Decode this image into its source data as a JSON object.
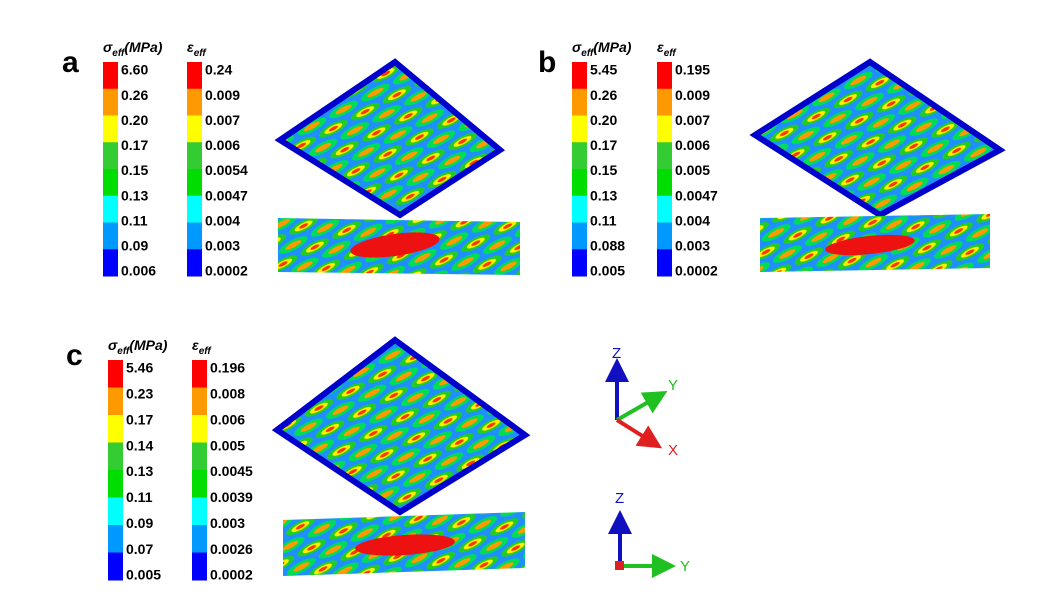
{
  "colorbar_colors": [
    "#ff0000",
    "#ff9900",
    "#ffff00",
    "#33cc33",
    "#00dd00",
    "#00ffff",
    "#0099ff",
    "#0000ff"
  ],
  "panels": [
    {
      "label": "a",
      "stress": {
        "symbol": "σ",
        "sub": "eff",
        "unit": "(MPa)",
        "ticks": [
          "6.60",
          "0.26",
          "0.20",
          "0.17",
          "0.15",
          "0.13",
          "0.11",
          "0.09",
          "0.006"
        ]
      },
      "strain": {
        "symbol": "ε",
        "sub": "eff",
        "ticks": [
          "0.24",
          "0.009",
          "0.007",
          "0.006",
          "0.0054",
          "0.0047",
          "0.004",
          "0.003",
          "0.0002"
        ]
      }
    },
    {
      "label": "b",
      "stress": {
        "symbol": "σ",
        "sub": "eff",
        "unit": "(MPa)",
        "ticks": [
          "5.45",
          "0.26",
          "0.20",
          "0.17",
          "0.15",
          "0.13",
          "0.11",
          "0.088",
          "0.005"
        ]
      },
      "strain": {
        "symbol": "ε",
        "sub": "eff",
        "ticks": [
          "0.195",
          "0.009",
          "0.007",
          "0.006",
          "0.005",
          "0.0047",
          "0.004",
          "0.003",
          "0.0002"
        ]
      }
    },
    {
      "label": "c",
      "stress": {
        "symbol": "σ",
        "sub": "eff",
        "unit": "(MPa)",
        "ticks": [
          "5.46",
          "0.23",
          "0.17",
          "0.14",
          "0.13",
          "0.11",
          "0.09",
          "0.07",
          "0.005"
        ]
      },
      "strain": {
        "symbol": "ε",
        "sub": "eff",
        "ticks": [
          "0.196",
          "0.008",
          "0.006",
          "0.005",
          "0.0045",
          "0.0039",
          "0.003",
          "0.0026",
          "0.0002"
        ]
      }
    }
  ],
  "triad_iso": {
    "z": "Z",
    "y": "Y",
    "x": "X"
  },
  "triad_side": {
    "z": "Z",
    "y": "Y"
  }
}
